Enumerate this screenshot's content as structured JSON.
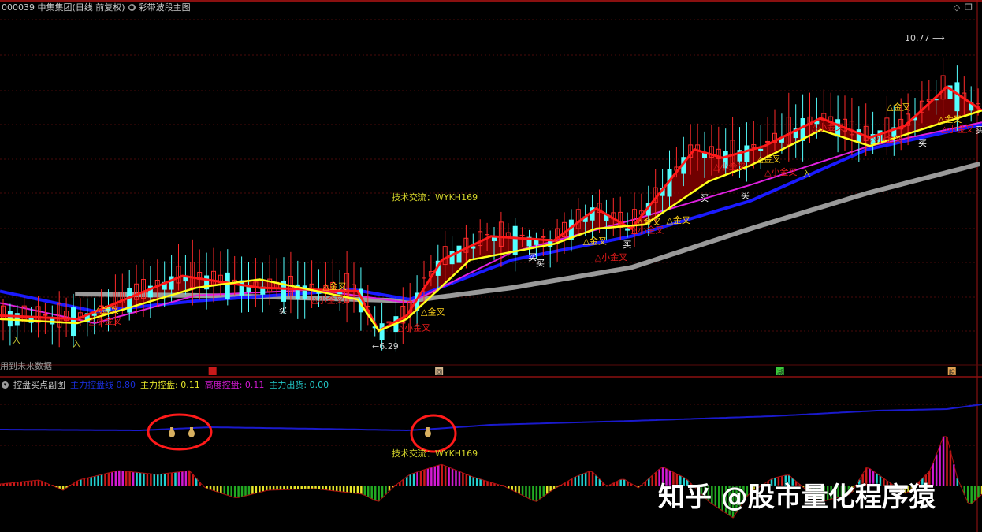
{
  "header": {
    "title": "000039 中集集团(日线 前复权)",
    "indicator_name": "彩带波段主图",
    "future_data_note": "用到未来数据"
  },
  "sub_header": {
    "indicator_name": "控盘买点副图",
    "legend": [
      {
        "label": "主力控盘线",
        "value": "0.80",
        "color": "#1a2ed8"
      },
      {
        "label": "主力控盘:",
        "value": "0.11",
        "color": "#e6e62a"
      },
      {
        "label": "高度控盘:",
        "value": "0.11",
        "color": "#d21ad2"
      },
      {
        "label": "主力出货:",
        "value": "0.00",
        "color": "#22c8c8"
      }
    ]
  },
  "watermark": "知乎 @股市量化程序猿",
  "chart_data": [
    {
      "type": "line",
      "panel": "main",
      "title": "彩带波段主图",
      "x_unit": "bar index",
      "ylim": [
        6.29,
        10.77
      ],
      "price_high_label": "10.77",
      "price_low_label": "6.29",
      "grid": true,
      "series": [
        {
          "color": "#ff1a1a",
          "points": [
            [
              0,
              6.74
            ],
            [
              11,
              6.69
            ],
            [
              26,
              7.31
            ],
            [
              37,
              7.14
            ],
            [
              51,
              7.09
            ],
            [
              54,
              6.52
            ],
            [
              58,
              6.74
            ],
            [
              63,
              7.54
            ],
            [
              70,
              7.88
            ],
            [
              79,
              7.82
            ],
            [
              85,
              8.28
            ],
            [
              90,
              7.99
            ],
            [
              99,
              9.13
            ],
            [
              103,
              9.01
            ],
            [
              109,
              9.18
            ],
            [
              117,
              9.58
            ],
            [
              124,
              9.3
            ],
            [
              129,
              9.47
            ],
            [
              135,
              10.03
            ],
            [
              140,
              9.69
            ]
          ]
        },
        {
          "color": "#ffff1a",
          "points": [
            [
              0,
              6.69
            ],
            [
              11,
              6.63
            ],
            [
              28,
              7.14
            ],
            [
              37,
              7.26
            ],
            [
              51,
              6.97
            ],
            [
              54,
              6.52
            ],
            [
              58,
              6.69
            ],
            [
              67,
              7.54
            ],
            [
              79,
              7.77
            ],
            [
              85,
              7.99
            ],
            [
              92,
              8.05
            ],
            [
              101,
              8.67
            ],
            [
              107,
              8.9
            ],
            [
              117,
              9.41
            ],
            [
              124,
              9.18
            ],
            [
              133,
              9.47
            ],
            [
              140,
              9.69
            ]
          ]
        },
        {
          "color": "#e020e0",
          "points": [
            [
              0,
              6.92
            ],
            [
              13.5,
              6.63
            ],
            [
              28,
              7.03
            ],
            [
              45,
              7.11
            ],
            [
              58.4,
              6.92
            ],
            [
              73,
              7.65
            ],
            [
              90,
              8.11
            ],
            [
              107,
              8.62
            ],
            [
              124,
              9.18
            ],
            [
              140,
              9.52
            ]
          ]
        },
        {
          "color": "#1a1aff",
          "points": [
            [
              0,
              7.09
            ],
            [
              13.5,
              6.8
            ],
            [
              28,
              6.95
            ],
            [
              50.5,
              7.11
            ],
            [
              58.4,
              6.97
            ],
            [
              73,
              7.54
            ],
            [
              90,
              7.88
            ],
            [
              107,
              8.39
            ],
            [
              123.6,
              9.13
            ],
            [
              140,
              9.49
            ]
          ]
        },
        {
          "color": "#9a9a9a",
          "points": [
            [
              10.7,
              7.05
            ],
            [
              33.7,
              7.02
            ],
            [
              58.4,
              6.95
            ],
            [
              73,
              7.14
            ],
            [
              90,
              7.43
            ],
            [
              107,
              7.99
            ],
            [
              123.6,
              8.5
            ],
            [
              140,
              8.93
            ]
          ]
        }
      ],
      "annotations": [
        {
          "text": "入",
          "x": 1.7,
          "y": 6.34,
          "color": "#c8c832"
        },
        {
          "text": "入",
          "x": 10.3,
          "y": 6.29,
          "color": "#c8c832"
        },
        {
          "text": "△金叉",
          "x": 13.5,
          "y": 6.78,
          "color": "#ffd21a"
        },
        {
          "text": "△小金叉",
          "x": 12.7,
          "y": 6.62,
          "color": "#e01a1a"
        },
        {
          "text": "买",
          "x": 39.7,
          "y": 6.77,
          "color": "#ffffff"
        },
        {
          "text": "△金叉",
          "x": 46,
          "y": 7.12,
          "color": "#ffd21a"
        },
        {
          "text": "△小金叉",
          "x": 44.4,
          "y": 6.92,
          "color": "#e01a1a"
        },
        {
          "text": "△金叉",
          "x": 60,
          "y": 6.75,
          "color": "#ffd21a"
        },
        {
          "text": "△小金叉",
          "x": 56.7,
          "y": 6.52,
          "color": "#e01a1a"
        },
        {
          "text": "买",
          "x": 75.3,
          "y": 7.54,
          "color": "#ffffff"
        },
        {
          "text": "买",
          "x": 76.4,
          "y": 7.45,
          "color": "#ffffff"
        },
        {
          "text": "△金叉",
          "x": 83.1,
          "y": 7.77,
          "color": "#ffd21a"
        },
        {
          "text": "△小金叉",
          "x": 84.8,
          "y": 7.54,
          "color": "#e01a1a"
        },
        {
          "text": "买",
          "x": 88.8,
          "y": 7.72,
          "color": "#ffffff"
        },
        {
          "text": "△金叉",
          "x": 90.8,
          "y": 8.05,
          "color": "#ffd21a"
        },
        {
          "text": "△金叉",
          "x": 95,
          "y": 8.07,
          "color": "#ffd21a"
        },
        {
          "text": "△小金叉",
          "x": 90,
          "y": 7.93,
          "color": "#e01a1a"
        },
        {
          "text": "买",
          "x": 99.8,
          "y": 8.39,
          "color": "#ffffff"
        },
        {
          "text": "△小金叉",
          "x": 101.7,
          "y": 8.84,
          "color": "#e01a1a"
        },
        {
          "text": "△金叉",
          "x": 107.9,
          "y": 8.95,
          "color": "#ffd21a"
        },
        {
          "text": "△小金叉",
          "x": 109,
          "y": 8.76,
          "color": "#e01a1a"
        },
        {
          "text": "买",
          "x": 105.6,
          "y": 8.43,
          "color": "#ffffff"
        },
        {
          "text": "入",
          "x": 114.4,
          "y": 8.74,
          "color": "#c8c832"
        },
        {
          "text": "△小金叉",
          "x": 115.7,
          "y": 9.41,
          "color": "#e01a1a"
        },
        {
          "text": "△金叉",
          "x": 126.4,
          "y": 9.7,
          "color": "#ffd21a"
        },
        {
          "text": "△小金叉",
          "x": 124,
          "y": 9.24,
          "color": "#e01a1a"
        },
        {
          "text": "买",
          "x": 130.9,
          "y": 9.18,
          "color": "#ffffff"
        },
        {
          "text": "△金叉",
          "x": 133.7,
          "y": 9.52,
          "color": "#ffd21a"
        },
        {
          "text": "△小金叉",
          "x": 134.2,
          "y": 9.38,
          "color": "#e01a1a"
        },
        {
          "text": "买",
          "x": 139.1,
          "y": 9.37,
          "color": "#ffffff"
        }
      ],
      "contact_text": "技术交流：WYKH169"
    },
    {
      "type": "bar",
      "panel": "sub",
      "title": "控盘买点副图",
      "x_unit": "bar index",
      "line": {
        "color": "#1a1acc",
        "points": [
          [
            0,
            7.2
          ],
          [
            20,
            7.1
          ],
          [
            30,
            7.5
          ],
          [
            45,
            7.3
          ],
          [
            58,
            7.1
          ],
          [
            62,
            7.3
          ],
          [
            70,
            7.8
          ],
          [
            90,
            8.3
          ],
          [
            110,
            8.9
          ],
          [
            125,
            9.6
          ],
          [
            135,
            9.8
          ],
          [
            140,
            10.4
          ]
        ]
      },
      "histogram": [
        [
          0,
          0.3
        ],
        [
          5.6,
          0.8
        ],
        [
          9,
          -0.5
        ],
        [
          11.2,
          0.8
        ],
        [
          16.9,
          2.0
        ],
        [
          22.5,
          1.5
        ],
        [
          27,
          2.0
        ],
        [
          29.2,
          -0.2
        ],
        [
          33.7,
          -1.5
        ],
        [
          38.2,
          -0.5
        ],
        [
          44.9,
          -0.3
        ],
        [
          51.7,
          -1.0
        ],
        [
          53.9,
          -2.0
        ],
        [
          56.2,
          0
        ],
        [
          58.4,
          1.5
        ],
        [
          62.9,
          2.8
        ],
        [
          67.4,
          1.2
        ],
        [
          71.9,
          0
        ],
        [
          76.4,
          -2.0
        ],
        [
          78.7,
          -0.5
        ],
        [
          82,
          1.2
        ],
        [
          84.3,
          2.0
        ],
        [
          86.5,
          0
        ],
        [
          88.8,
          1.0
        ],
        [
          91,
          -0.2
        ],
        [
          94.4,
          2.5
        ],
        [
          97.8,
          1.0
        ],
        [
          101.1,
          -2.0
        ],
        [
          104.5,
          -4.0
        ],
        [
          106.7,
          -1.0
        ],
        [
          110.1,
          1.0
        ],
        [
          112.4,
          1.5
        ],
        [
          116.9,
          -2.0
        ],
        [
          121.3,
          -1.0
        ],
        [
          123.6,
          2.5
        ],
        [
          129.2,
          -1.0
        ],
        [
          132.6,
          2.0
        ],
        [
          134.8,
          7.0
        ],
        [
          136.5,
          1.0
        ],
        [
          138.2,
          -2.5
        ],
        [
          140,
          -1.0
        ]
      ],
      "buy_signals": [
        {
          "x": 24.5,
          "icon": "money-bag"
        },
        {
          "x": 27.3,
          "icon": "money-bag"
        },
        {
          "x": 61,
          "icon": "money-bag"
        }
      ],
      "contact_text": "技术交流：WYKH169"
    }
  ],
  "markers": [
    {
      "x": 30.3,
      "color": "#c81a1a",
      "text": ""
    },
    {
      "x": 62.6,
      "color": "#d2b48c",
      "text": "回"
    },
    {
      "x": 111.2,
      "color": "#3ac83a",
      "text": "减"
    },
    {
      "x": 135.7,
      "color": "#e0a050",
      "text": "股"
    }
  ]
}
